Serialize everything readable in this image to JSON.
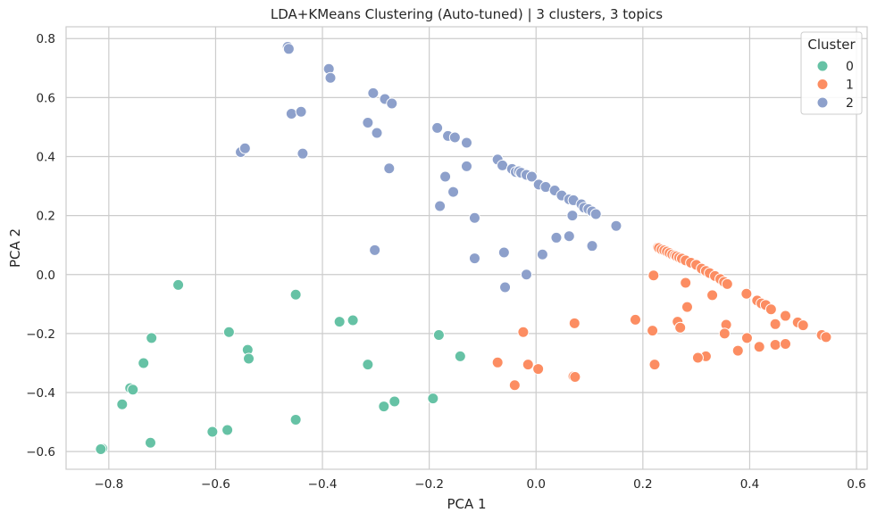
{
  "chart_data": {
    "type": "scatter",
    "title": "LDA+KMeans Clustering (Auto-tuned) | 3 clusters, 3 topics",
    "xlabel": "PCA 1",
    "ylabel": "PCA 2",
    "xlim": [
      -0.88,
      0.62
    ],
    "ylim": [
      -0.66,
      0.84
    ],
    "xticks": [
      -0.8,
      -0.6,
      -0.4,
      -0.2,
      0.0,
      0.2,
      0.4,
      0.6
    ],
    "xtick_labels": [
      "−0.8",
      "−0.6",
      "−0.4",
      "−0.2",
      "0.0",
      "0.2",
      "0.4",
      "0.6"
    ],
    "yticks": [
      -0.6,
      -0.4,
      -0.2,
      0.0,
      0.2,
      0.4,
      0.6,
      0.8
    ],
    "ytick_labels": [
      "−0.6",
      "−0.4",
      "−0.2",
      "0.0",
      "0.2",
      "0.4",
      "0.6",
      "0.8"
    ],
    "grid": true,
    "legend": {
      "title": "Cluster",
      "placement": "top-right"
    },
    "series": [
      {
        "name": "0",
        "color": "#66c2a5",
        "points": [
          [
            -0.67,
            -0.035
          ],
          [
            -0.45,
            -0.068
          ],
          [
            -0.72,
            -0.215
          ],
          [
            -0.575,
            -0.195
          ],
          [
            -0.368,
            -0.16
          ],
          [
            -0.343,
            -0.155
          ],
          [
            -0.54,
            -0.255
          ],
          [
            -0.538,
            -0.285
          ],
          [
            -0.735,
            -0.3
          ],
          [
            -0.315,
            -0.305
          ],
          [
            -0.182,
            -0.205
          ],
          [
            -0.142,
            -0.277
          ],
          [
            -0.76,
            -0.385
          ],
          [
            -0.755,
            -0.39
          ],
          [
            -0.775,
            -0.44
          ],
          [
            -0.265,
            -0.43
          ],
          [
            -0.285,
            -0.447
          ],
          [
            -0.193,
            -0.42
          ],
          [
            -0.45,
            -0.492
          ],
          [
            -0.578,
            -0.527
          ],
          [
            -0.606,
            -0.533
          ],
          [
            -0.722,
            -0.57
          ],
          [
            -0.812,
            -0.59
          ],
          [
            -0.815,
            -0.592
          ]
        ]
      },
      {
        "name": "1",
        "color": "#fc8d62",
        "points": [
          [
            0.228,
            0.092
          ],
          [
            0.23,
            0.09
          ],
          [
            0.235,
            0.085
          ],
          [
            0.24,
            0.082
          ],
          [
            0.245,
            0.078
          ],
          [
            0.25,
            0.073
          ],
          [
            0.255,
            0.068
          ],
          [
            0.26,
            0.065
          ],
          [
            0.263,
            0.062
          ],
          [
            0.268,
            0.058
          ],
          [
            0.273,
            0.054
          ],
          [
            0.28,
            0.048
          ],
          [
            0.29,
            0.04
          ],
          [
            0.3,
            0.033
          ],
          [
            0.31,
            0.02
          ],
          [
            0.318,
            0.012
          ],
          [
            0.325,
            0.005
          ],
          [
            0.335,
            -0.005
          ],
          [
            0.345,
            -0.015
          ],
          [
            0.352,
            -0.025
          ],
          [
            0.358,
            -0.032
          ],
          [
            0.394,
            -0.065
          ],
          [
            0.414,
            -0.088
          ],
          [
            0.422,
            -0.098
          ],
          [
            0.43,
            -0.103
          ],
          [
            0.44,
            -0.118
          ],
          [
            0.467,
            -0.14
          ],
          [
            0.49,
            -0.162
          ],
          [
            0.5,
            -0.172
          ],
          [
            0.535,
            -0.205
          ],
          [
            0.543,
            -0.212
          ],
          [
            0.22,
            -0.003
          ],
          [
            0.28,
            -0.028
          ],
          [
            0.33,
            -0.07
          ],
          [
            0.283,
            -0.11
          ],
          [
            0.186,
            -0.153
          ],
          [
            0.265,
            -0.16
          ],
          [
            0.27,
            -0.18
          ],
          [
            0.218,
            -0.19
          ],
          [
            0.356,
            -0.17
          ],
          [
            0.353,
            -0.2
          ],
          [
            0.395,
            -0.215
          ],
          [
            0.448,
            -0.168
          ],
          [
            0.448,
            -0.238
          ],
          [
            0.467,
            -0.235
          ],
          [
            0.418,
            -0.245
          ],
          [
            0.378,
            -0.258
          ],
          [
            0.318,
            -0.277
          ],
          [
            0.303,
            -0.282
          ],
          [
            0.222,
            -0.305
          ],
          [
            0.072,
            -0.165
          ],
          [
            -0.024,
            -0.195
          ],
          [
            -0.072,
            -0.298
          ],
          [
            -0.015,
            -0.305
          ],
          [
            0.004,
            -0.32
          ],
          [
            0.07,
            -0.345
          ],
          [
            0.073,
            -0.347
          ],
          [
            -0.04,
            -0.375
          ]
        ]
      },
      {
        "name": "2",
        "color": "#8da0cb",
        "points": [
          [
            -0.465,
            0.772
          ],
          [
            -0.463,
            0.765
          ],
          [
            -0.388,
            0.697
          ],
          [
            -0.385,
            0.667
          ],
          [
            -0.305,
            0.615
          ],
          [
            -0.283,
            0.595
          ],
          [
            -0.27,
            0.58
          ],
          [
            -0.458,
            0.545
          ],
          [
            -0.44,
            0.552
          ],
          [
            -0.315,
            0.515
          ],
          [
            -0.298,
            0.48
          ],
          [
            -0.553,
            0.415
          ],
          [
            -0.545,
            0.428
          ],
          [
            -0.437,
            0.41
          ],
          [
            -0.275,
            0.36
          ],
          [
            -0.185,
            0.497
          ],
          [
            -0.165,
            0.47
          ],
          [
            -0.152,
            0.465
          ],
          [
            -0.13,
            0.447
          ],
          [
            -0.13,
            0.367
          ],
          [
            -0.17,
            0.332
          ],
          [
            -0.155,
            0.28
          ],
          [
            -0.18,
            0.232
          ],
          [
            -0.115,
            0.192
          ],
          [
            -0.072,
            0.39
          ],
          [
            -0.063,
            0.37
          ],
          [
            -0.045,
            0.358
          ],
          [
            -0.038,
            0.348
          ],
          [
            -0.032,
            0.35
          ],
          [
            -0.028,
            0.345
          ],
          [
            -0.018,
            0.338
          ],
          [
            -0.008,
            0.332
          ],
          [
            0.005,
            0.305
          ],
          [
            0.018,
            0.297
          ],
          [
            0.035,
            0.285
          ],
          [
            0.048,
            0.268
          ],
          [
            0.062,
            0.255
          ],
          [
            0.07,
            0.252
          ],
          [
            0.085,
            0.238
          ],
          [
            0.09,
            0.227
          ],
          [
            0.098,
            0.222
          ],
          [
            0.105,
            0.214
          ],
          [
            0.112,
            0.205
          ],
          [
            0.068,
            0.2
          ],
          [
            0.15,
            0.165
          ],
          [
            0.038,
            0.125
          ],
          [
            0.062,
            0.13
          ],
          [
            0.105,
            0.097
          ],
          [
            0.012,
            0.068
          ],
          [
            -0.06,
            0.075
          ],
          [
            -0.115,
            0.055
          ],
          [
            -0.302,
            0.083
          ],
          [
            -0.018,
            0.0
          ],
          [
            -0.058,
            -0.043
          ]
        ]
      }
    ]
  }
}
